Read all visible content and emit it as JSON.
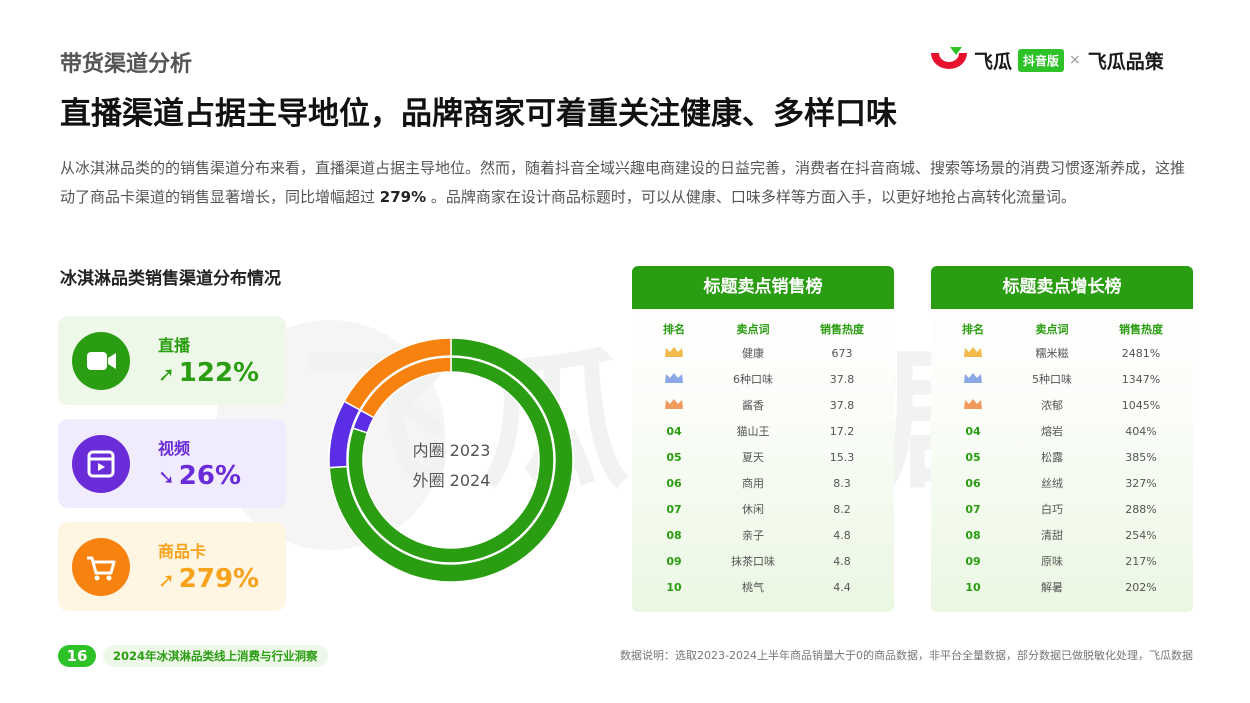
{
  "header": {
    "section_label": "带货渠道分析",
    "headline": "直播渠道占据主导地位，品牌商家可着重关注健康、多样口味",
    "intro_part1": "从冰淇淋品类的的销售渠道分布来看，直播渠道占据主导地位。然而，随着抖音全域兴趣电商建设的日益完善，消费者在抖音商城、搜索等场景的消费习惯逐渐养成，这推动了商品卡渠道的销售显著增长，同比增幅超过 ",
    "intro_highlight": "279%",
    "intro_part2": " 。品牌商家在设计商品标题时，可以从健康、口味多样等方面入手，以更好地抢占高转化流量词。"
  },
  "brand": {
    "name1": "飞瓜",
    "tag": "抖音版",
    "separator": "×",
    "name2": "飞瓜品策"
  },
  "watermark": "飞瓜数据",
  "distribution": {
    "title": "冰淇淋品类销售渠道分布情况",
    "channels": [
      {
        "name": "直播",
        "change": "122%",
        "direction": "up",
        "icon": "video-camera-icon",
        "color": "#2a9d12"
      },
      {
        "name": "视频",
        "change": "26%",
        "direction": "down",
        "icon": "video-play-icon",
        "color": "#6a2cd8"
      },
      {
        "name": "商品卡",
        "change": "279%",
        "direction": "up",
        "icon": "shopping-cart-icon",
        "color": "#f7a21b"
      }
    ],
    "inner_label": "内圈 2023",
    "outer_label": "外圈 2024"
  },
  "chart_data": {
    "type": "pie",
    "variant": "double-donut",
    "categories": [
      "直播",
      "视频",
      "商品卡"
    ],
    "series": [
      {
        "name": "内圈 2023",
        "values": [
          80,
          3,
          17
        ]
      },
      {
        "name": "外圈 2024",
        "values": [
          74,
          9,
          17
        ]
      }
    ],
    "colors": [
      "#2a9d12",
      "#5b2ee6",
      "#f7820f"
    ]
  },
  "sales_rank": {
    "title": "标题卖点销售榜",
    "columns": [
      "排名",
      "卖点词",
      "销售热度"
    ],
    "rows": [
      {
        "rank": "",
        "crown": "gold-crown-icon",
        "word": "健康",
        "value": "673"
      },
      {
        "rank": "",
        "crown": "silver-crown-icon",
        "word": "6种口味",
        "value": "37.8"
      },
      {
        "rank": "",
        "crown": "bronze-crown-icon",
        "word": "酱香",
        "value": "37.8"
      },
      {
        "rank": "04",
        "word": "猫山王",
        "value": "17.2"
      },
      {
        "rank": "05",
        "word": "夏天",
        "value": "15.3"
      },
      {
        "rank": "06",
        "word": "商用",
        "value": "8.3"
      },
      {
        "rank": "07",
        "word": "休闲",
        "value": "8.2"
      },
      {
        "rank": "08",
        "word": "亲子",
        "value": "4.8"
      },
      {
        "rank": "09",
        "word": "抹茶口味",
        "value": "4.8"
      },
      {
        "rank": "10",
        "word": "桃气",
        "value": "4.4"
      }
    ]
  },
  "growth_rank": {
    "title": "标题卖点增长榜",
    "columns": [
      "排名",
      "卖点词",
      "销售热度"
    ],
    "rows": [
      {
        "rank": "",
        "crown": "gold-crown-icon",
        "word": "糯米糍",
        "value": "2481%"
      },
      {
        "rank": "",
        "crown": "silver-crown-icon",
        "word": "5种口味",
        "value": "1347%"
      },
      {
        "rank": "",
        "crown": "bronze-crown-icon",
        "word": "浓郁",
        "value": "1045%"
      },
      {
        "rank": "04",
        "word": "熔岩",
        "value": "404%"
      },
      {
        "rank": "05",
        "word": "松露",
        "value": "385%"
      },
      {
        "rank": "06",
        "word": "丝绒",
        "value": "327%"
      },
      {
        "rank": "07",
        "word": "白巧",
        "value": "288%"
      },
      {
        "rank": "08",
        "word": "清甜",
        "value": "254%"
      },
      {
        "rank": "09",
        "word": "原味",
        "value": "217%"
      },
      {
        "rank": "10",
        "word": "解暑",
        "value": "202%"
      }
    ]
  },
  "footer": {
    "page_number": "16",
    "report_title": "2024年冰淇淋品类线上消费与行业洞察",
    "note": "数据说明：选取2023-2024上半年商品销量大于0的商品数据，非平台全量数据，部分数据已做脱敏化处理，飞瓜数据"
  }
}
